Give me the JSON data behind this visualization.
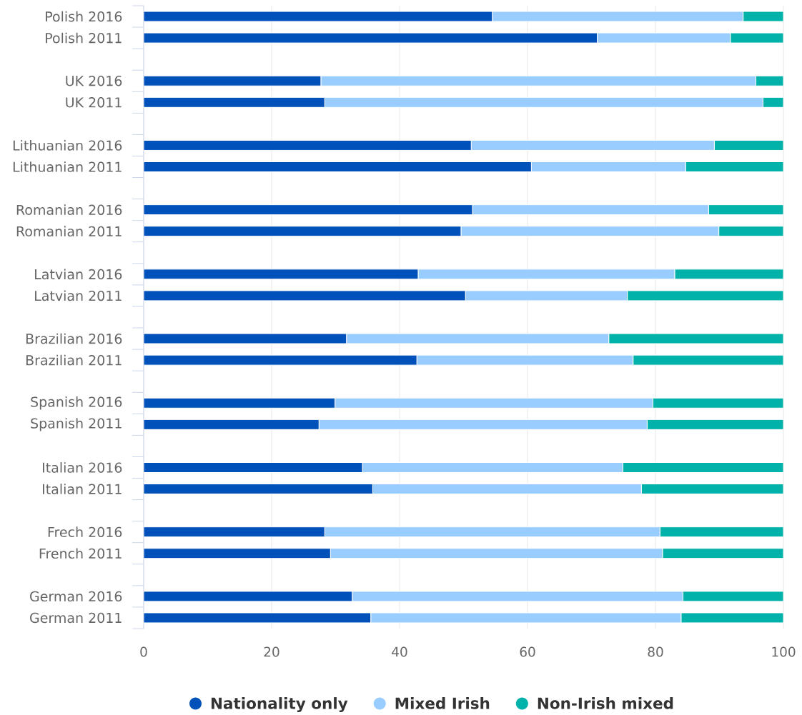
{
  "chart_data": {
    "type": "bar",
    "orientation": "horizontal",
    "stacked": true,
    "categories": [
      "Polish 2016",
      "Polish 2011",
      null,
      "UK 2016",
      "UK 2011",
      null,
      "Lithuanian 2016",
      "Lithuanian 2011",
      null,
      "Romanian 2016",
      "Romanian 2011",
      null,
      "Latvian 2016",
      "Latvian 2011",
      null,
      "Brazilian 2016",
      "Brazilian 2011",
      null,
      "Spanish 2016",
      "Spanish 2011",
      null,
      "Italian 2016",
      "Italian 2011",
      null,
      "Frech 2016",
      "French 2011",
      null,
      "German 2016",
      "German 2011"
    ],
    "series": [
      {
        "name": "Nationality only",
        "color": "#0051b9",
        "values": [
          54.5,
          70.9,
          null,
          27.7,
          28.3,
          null,
          51.2,
          60.6,
          null,
          51.4,
          49.6,
          null,
          42.9,
          50.3,
          null,
          31.7,
          42.7,
          null,
          29.9,
          27.4,
          null,
          34.2,
          35.8,
          null,
          28.3,
          29.2,
          null,
          32.6,
          35.5
        ]
      },
      {
        "name": "Mixed Irish",
        "color": "#99ccff",
        "values": [
          39.2,
          20.8,
          null,
          68.0,
          68.5,
          null,
          38.0,
          24.1,
          null,
          36.9,
          40.3,
          null,
          40.1,
          25.3,
          null,
          41.0,
          33.8,
          null,
          49.7,
          51.3,
          null,
          40.7,
          42.0,
          null,
          52.4,
          51.9,
          null,
          51.7,
          48.5
        ]
      },
      {
        "name": "Non-Irish mixed",
        "color": "#00b2a9",
        "values": [
          6.3,
          8.3,
          null,
          4.3,
          3.2,
          null,
          10.8,
          15.3,
          null,
          11.7,
          10.1,
          null,
          17.0,
          24.4,
          null,
          27.3,
          23.5,
          null,
          20.4,
          21.3,
          null,
          25.1,
          22.2,
          null,
          19.3,
          18.9,
          null,
          15.7,
          16.0
        ]
      }
    ],
    "xlim": [
      0,
      100
    ],
    "xticks": [
      0,
      20,
      40,
      60,
      80,
      100
    ],
    "grid": "x",
    "legend": "bottom"
  }
}
